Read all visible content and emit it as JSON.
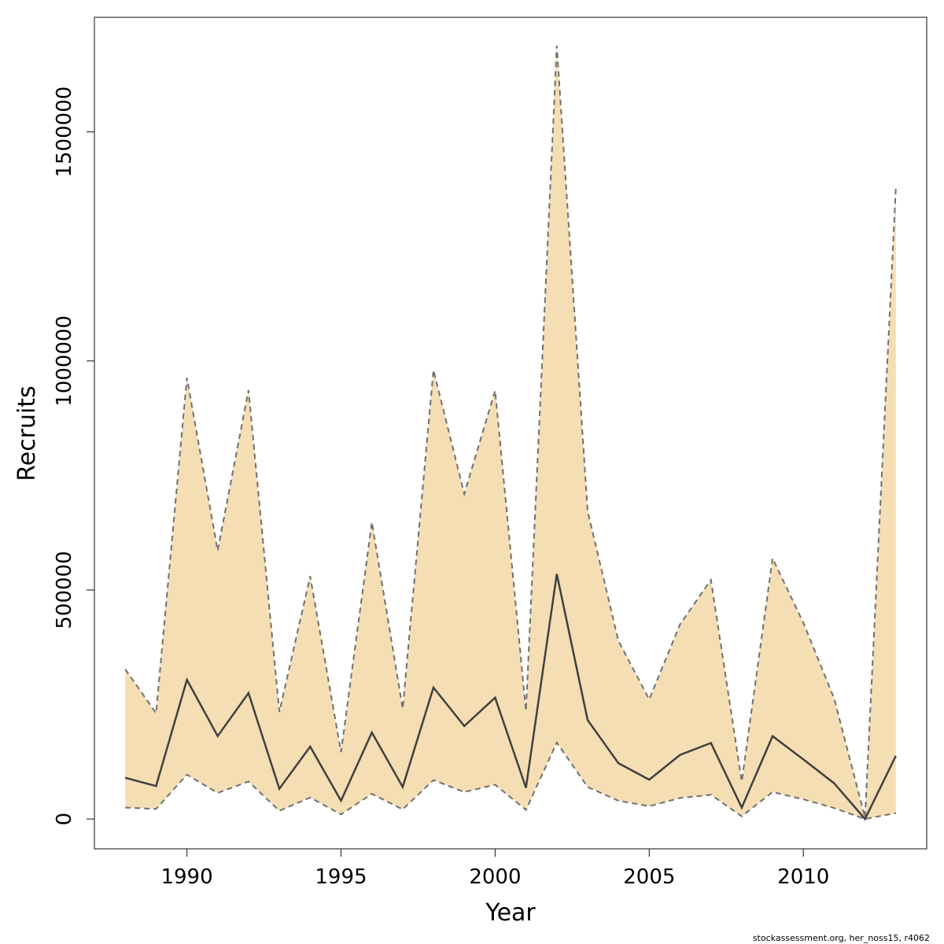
{
  "chart_data": {
    "type": "line",
    "title": "",
    "xlabel": "Year",
    "ylabel": "Recruits",
    "xlim": [
      1987,
      2014
    ],
    "ylim": [
      -65000,
      1750000
    ],
    "x_ticks": [
      1990,
      1995,
      2000,
      2005,
      2010
    ],
    "x_tick_labels": [
      "1990",
      "1995",
      "2000",
      "2005",
      "2010"
    ],
    "y_ticks": [
      0,
      500000,
      1000000,
      1500000
    ],
    "y_tick_labels": [
      "0",
      "500000",
      "1000000",
      "1500000"
    ],
    "grid": false,
    "legend": "none",
    "band_color": "#f5deb3",
    "line_color": "#404040",
    "bound_color": "#707070",
    "x": [
      1988,
      1989,
      1990,
      1991,
      1992,
      1993,
      1994,
      1995,
      1996,
      1997,
      1998,
      1999,
      2000,
      2001,
      2002,
      2003,
      2004,
      2005,
      2006,
      2007,
      2008,
      2009,
      2010,
      2011,
      2012,
      2013
    ],
    "series": [
      {
        "role": "estimate",
        "values": [
          90000,
          72000,
          304000,
          181000,
          275000,
          66000,
          158000,
          40000,
          189000,
          70000,
          287000,
          203000,
          265000,
          68000,
          535000,
          216000,
          122000,
          86000,
          140000,
          166000,
          25000,
          181000,
          130000,
          78000,
          0,
          138000
        ]
      },
      {
        "role": "lower",
        "values": [
          25000,
          22000,
          97000,
          57000,
          82000,
          18000,
          47000,
          10000,
          55000,
          21000,
          85000,
          59000,
          75000,
          20000,
          167000,
          70000,
          40000,
          28000,
          46000,
          53000,
          6000,
          59000,
          43000,
          24000,
          0,
          13000
        ]
      },
      {
        "role": "upper",
        "values": [
          327000,
          231000,
          963000,
          586000,
          936000,
          234000,
          530000,
          146000,
          648000,
          241000,
          980000,
          710000,
          935000,
          236000,
          1688000,
          672000,
          389000,
          261000,
          425000,
          522000,
          82000,
          569000,
          428000,
          263000,
          3000,
          1378000
        ]
      }
    ]
  },
  "footer": {
    "note": "stockassessment.org, her_noss15, r4062"
  }
}
